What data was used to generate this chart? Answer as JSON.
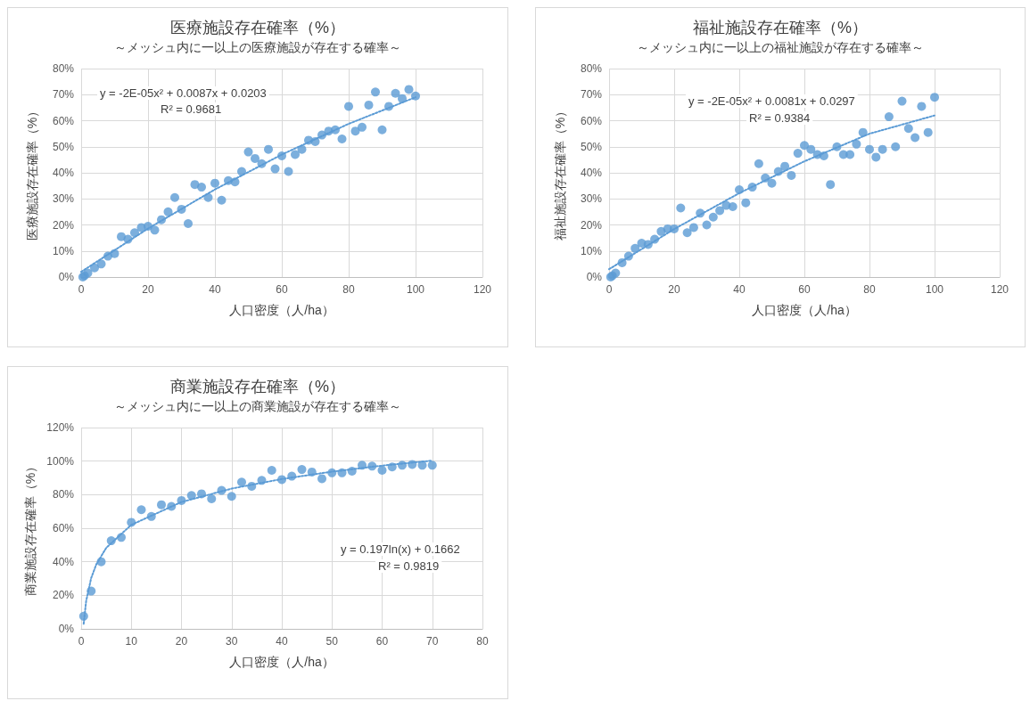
{
  "chart_data": [
    {
      "type": "scatter",
      "title": "医療施設存在確率（%）",
      "subtitle": "～メッシュ内に一以上の医療施設が存在する確率～",
      "xlabel": "人口密度（人/ha）",
      "ylabel": "医療施設存在確率（%）",
      "annotations": [
        "y = -2E-05x² + 0.0087x + 0.0203",
        "R² = 0.9681"
      ],
      "xlim": [
        0,
        120
      ],
      "xticks": [
        0,
        20,
        40,
        60,
        80,
        100,
        120
      ],
      "ylim": [
        0,
        80
      ],
      "yticks": [
        {
          "value": 0,
          "label": "0%"
        },
        {
          "value": 10,
          "label": "10%"
        },
        {
          "value": 20,
          "label": "20%"
        },
        {
          "value": 30,
          "label": "30%"
        },
        {
          "value": 40,
          "label": "40%"
        },
        {
          "value": 50,
          "label": "50%"
        },
        {
          "value": 60,
          "label": "60%"
        },
        {
          "value": 70,
          "label": "70%"
        },
        {
          "value": 80,
          "label": "80%"
        }
      ],
      "grid": true,
      "marker": "circle",
      "series": [
        {
          "type": "scatter",
          "color": "#5b9bd5",
          "x": [
            0.5,
            1,
            2,
            4,
            6,
            8,
            10,
            12,
            14,
            16,
            18,
            20,
            22,
            24,
            26,
            28,
            30,
            32,
            34,
            36,
            38,
            40,
            42,
            44,
            46,
            48,
            50,
            52,
            54,
            56,
            58,
            60,
            62,
            64,
            66,
            68,
            70,
            72,
            74,
            76,
            78,
            80,
            82,
            84,
            86,
            88,
            90,
            92,
            94,
            96,
            98,
            100
          ],
          "values": [
            0,
            0.5,
            1.5,
            3.5,
            5,
            8,
            9,
            15.5,
            14.5,
            17,
            19,
            19.5,
            18,
            22,
            25,
            30.5,
            26,
            20.5,
            35.5,
            34.5,
            30.5,
            36,
            29.5,
            37,
            36.5,
            40.5,
            48,
            45.5,
            43.5,
            49,
            41.5,
            46.5,
            40.5,
            47,
            49,
            52.5,
            52,
            54.5,
            56,
            56.5,
            53,
            65.5,
            56,
            57.5,
            66,
            71,
            56.5,
            65.5,
            70.5,
            68.5,
            72,
            69.5
          ]
        },
        {
          "type": "line",
          "color": "#5b9bd5",
          "line_style": "dotted",
          "marker": "none",
          "x": [
            0,
            20,
            40,
            60,
            80,
            100
          ],
          "values": [
            2,
            18.6,
            33.6,
            47,
            58.8,
            69
          ]
        }
      ]
    },
    {
      "type": "scatter",
      "title": "福祉施設存在確率（%）",
      "subtitle": "～メッシュ内に一以上の福祉施設が存在する確率～",
      "xlabel": "人口密度（人/ha）",
      "ylabel": "福祉施設存在確率（%）",
      "annotations": [
        "y = -2E-05x² + 0.0081x + 0.0297",
        "R² = 0.9384"
      ],
      "xlim": [
        0,
        120
      ],
      "xticks": [
        0,
        20,
        40,
        60,
        80,
        100,
        120
      ],
      "ylim": [
        0,
        80
      ],
      "yticks": [
        {
          "value": 0,
          "label": "0%"
        },
        {
          "value": 10,
          "label": "10%"
        },
        {
          "value": 20,
          "label": "20%"
        },
        {
          "value": 30,
          "label": "30%"
        },
        {
          "value": 40,
          "label": "40%"
        },
        {
          "value": 50,
          "label": "50%"
        },
        {
          "value": 60,
          "label": "60%"
        },
        {
          "value": 70,
          "label": "70%"
        },
        {
          "value": 80,
          "label": "80%"
        }
      ],
      "grid": true,
      "marker": "circle",
      "series": [
        {
          "type": "scatter",
          "color": "#5b9bd5",
          "x": [
            0.5,
            1,
            2,
            4,
            6,
            8,
            10,
            12,
            14,
            16,
            18,
            20,
            22,
            24,
            26,
            28,
            30,
            32,
            34,
            36,
            38,
            40,
            42,
            44,
            46,
            48,
            50,
            52,
            54,
            56,
            58,
            60,
            62,
            64,
            66,
            68,
            70,
            72,
            74,
            76,
            78,
            80,
            82,
            84,
            86,
            88,
            90,
            92,
            94,
            96,
            98,
            100
          ],
          "values": [
            0,
            0.5,
            1.5,
            5.5,
            8,
            11,
            13,
            12.5,
            14.5,
            17.5,
            18.5,
            18.5,
            26.5,
            17,
            19,
            24.5,
            20,
            23,
            25.5,
            27.5,
            27,
            33.5,
            28.5,
            34.5,
            43.5,
            38,
            36,
            40.5,
            42.5,
            39,
            47.5,
            50.5,
            49,
            47,
            46.5,
            35.5,
            50,
            47,
            47,
            51,
            55.5,
            49,
            46,
            49,
            61.5,
            50,
            67.5,
            57,
            53.5,
            65.5,
            55.5,
            69
          ]
        },
        {
          "type": "line",
          "color": "#5b9bd5",
          "line_style": "dotted",
          "marker": "none",
          "x": [
            0,
            20,
            40,
            60,
            80,
            100
          ],
          "values": [
            3,
            18.4,
            32.2,
            44.4,
            55,
            62
          ]
        }
      ]
    },
    {
      "type": "scatter",
      "title": "商業施設存在確率（%）",
      "subtitle": "～メッシュ内に一以上の商業施設が存在する確率～",
      "xlabel": "人口密度（人/ha）",
      "ylabel": "商業施設存在確率（%）",
      "annotations": [
        "y = 0.197ln(x) + 0.1662",
        "R² = 0.9819"
      ],
      "xlim": [
        0,
        80
      ],
      "xticks": [
        0,
        10,
        20,
        30,
        40,
        50,
        60,
        70,
        80
      ],
      "ylim": [
        0,
        120
      ],
      "yticks": [
        {
          "value": 0,
          "label": "0%"
        },
        {
          "value": 20,
          "label": "20%"
        },
        {
          "value": 40,
          "label": "40%"
        },
        {
          "value": 60,
          "label": "60%"
        },
        {
          "value": 80,
          "label": "80%"
        },
        {
          "value": 100,
          "label": "100%"
        },
        {
          "value": 120,
          "label": "120%"
        }
      ],
      "grid": true,
      "marker": "circle",
      "series": [
        {
          "type": "scatter",
          "color": "#5b9bd5",
          "x": [
            0.5,
            2,
            4,
            6,
            8,
            10,
            12,
            14,
            16,
            18,
            20,
            22,
            24,
            26,
            28,
            30,
            32,
            34,
            36,
            38,
            40,
            42,
            44,
            46,
            48,
            50,
            52,
            54,
            56,
            58,
            60,
            62,
            64,
            66,
            68,
            70
          ],
          "values": [
            7.5,
            22.5,
            40,
            52.5,
            54.5,
            63.5,
            71,
            67,
            74,
            73,
            76.5,
            79.5,
            80.5,
            77.5,
            82.5,
            79,
            87.5,
            85,
            88.5,
            94.5,
            89,
            91,
            95,
            93.5,
            89.5,
            93,
            93,
            94,
            97.5,
            97,
            94.5,
            96.5,
            97.5,
            98,
            97.5,
            97.5
          ]
        },
        {
          "type": "line",
          "color": "#5b9bd5",
          "line_style": "dotted",
          "marker": "none",
          "x": [
            0.5,
            1,
            2,
            3,
            5,
            10,
            20,
            30,
            40,
            50,
            60,
            70
          ],
          "values": [
            3,
            16.6,
            30.3,
            38.3,
            48.3,
            62,
            75.6,
            83.6,
            89.3,
            93.7,
            97.3,
            100.3
          ]
        }
      ]
    }
  ]
}
